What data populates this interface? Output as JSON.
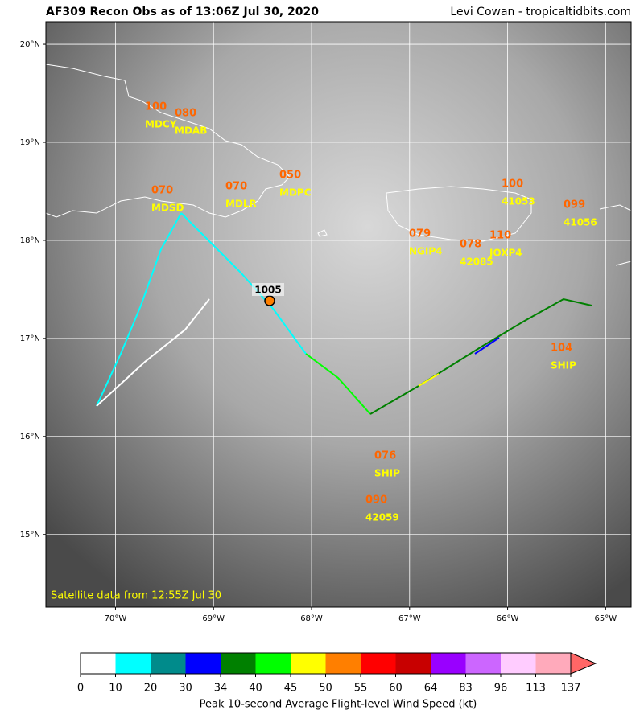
{
  "header": {
    "title": "AF309 Recon Obs as of 13:06Z Jul 30, 2020",
    "credit": "Levi Cowan - tropicaltidbits.com"
  },
  "map": {
    "xlim": [
      -70.71,
      -64.74
    ],
    "ylim": [
      14.26,
      20.23
    ],
    "xticks": [
      {
        "value": -70,
        "label": "70°W"
      },
      {
        "value": -69,
        "label": "69°W"
      },
      {
        "value": -68,
        "label": "68°W"
      },
      {
        "value": -67,
        "label": "67°W"
      },
      {
        "value": -66,
        "label": "66°W"
      },
      {
        "value": -65,
        "label": "65°W"
      }
    ],
    "yticks": [
      {
        "value": 15,
        "label": "15°N"
      },
      {
        "value": 16,
        "label": "16°N"
      },
      {
        "value": 17,
        "label": "17°N"
      },
      {
        "value": 18,
        "label": "18°N"
      },
      {
        "value": 19,
        "label": "19°N"
      },
      {
        "value": 20,
        "label": "20°N"
      }
    ],
    "center": {
      "pressure": 1005
    },
    "stations": [
      {
        "wind": "100",
        "name": "MDCY"
      },
      {
        "wind": "080",
        "name": "MDAB"
      },
      {
        "wind": "070",
        "name": "MDSD"
      },
      {
        "wind": "070",
        "name": "MDLR"
      },
      {
        "wind": "050",
        "name": "MDPC"
      },
      {
        "wind": "100",
        "name": "41053"
      },
      {
        "wind": "099",
        "name": "41056"
      },
      {
        "wind": "079",
        "name": "NGIP4"
      },
      {
        "wind": "078",
        "name": "42085"
      },
      {
        "wind": "110",
        "name": "JOXP4"
      },
      {
        "wind": "104",
        "name": "SHIP"
      },
      {
        "wind": "076",
        "name": "SHIP"
      },
      {
        "wind": "090",
        "name": "42059"
      }
    ],
    "note": "Satellite data from 12:55Z Jul 30"
  },
  "colorbar": {
    "ticks": [
      0,
      10,
      20,
      30,
      34,
      40,
      45,
      50,
      55,
      60,
      64,
      83,
      96,
      113,
      137
    ],
    "colors": [
      "#ffffff",
      "#00ffff",
      "#008b8b",
      "#0000ff",
      "#008000",
      "#00ff00",
      "#ffff00",
      "#ff7f00",
      "#ff0000",
      "#c80000",
      "#9900ff",
      "#cc66ff",
      "#ffccff",
      "#ffaabb",
      "#ff6666"
    ],
    "label": "Peak 10-second Average Flight-level Wind Speed (kt)"
  }
}
